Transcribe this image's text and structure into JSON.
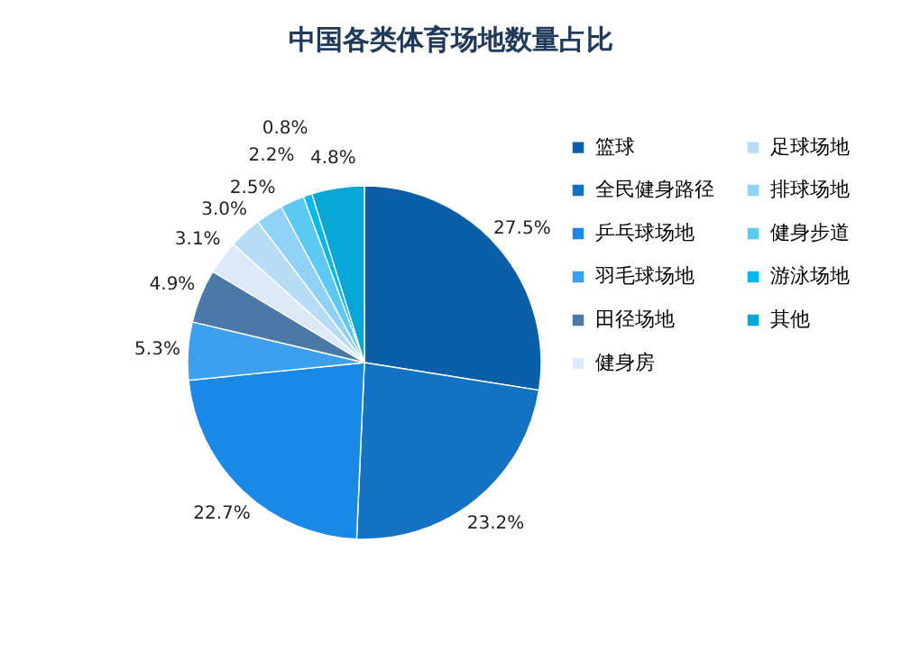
{
  "chart_data": {
    "type": "pie",
    "title": "中国各类体育场地数量占比",
    "categories": [
      "篮球",
      "全民健身路径",
      "乒乓球场地",
      "羽毛球场地",
      "田径场地",
      "健身房",
      "足球场地",
      "排球场地",
      "健身步道",
      "游泳场地",
      "其他"
    ],
    "values": [
      27.5,
      23.2,
      22.7,
      5.3,
      4.9,
      3.1,
      3.0,
      2.5,
      2.2,
      0.8,
      4.8
    ],
    "value_labels": [
      "27.5%",
      "23.2%",
      "22.7%",
      "5.3%",
      "4.9%",
      "3.1%",
      "3.0%",
      "2.5%",
      "2.2%",
      "0.8%",
      "4.8%"
    ],
    "colors": [
      "#0b5ea8",
      "#1272c4",
      "#1a89e6",
      "#3d9ff0",
      "#4a79a8",
      "#dbe9f8",
      "#b9dcf5",
      "#90d2f6",
      "#5cc9f5",
      "#00b9ee",
      "#06a7d6"
    ],
    "legend": "right"
  }
}
